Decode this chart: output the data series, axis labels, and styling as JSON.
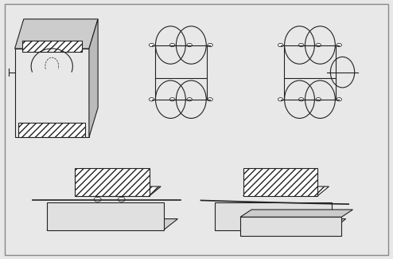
{
  "figsize": [
    4.94,
    3.25
  ],
  "dpi": 100,
  "fig_background": "#e8e8e8",
  "border_color": "#888888",
  "line_color": "#222222"
}
